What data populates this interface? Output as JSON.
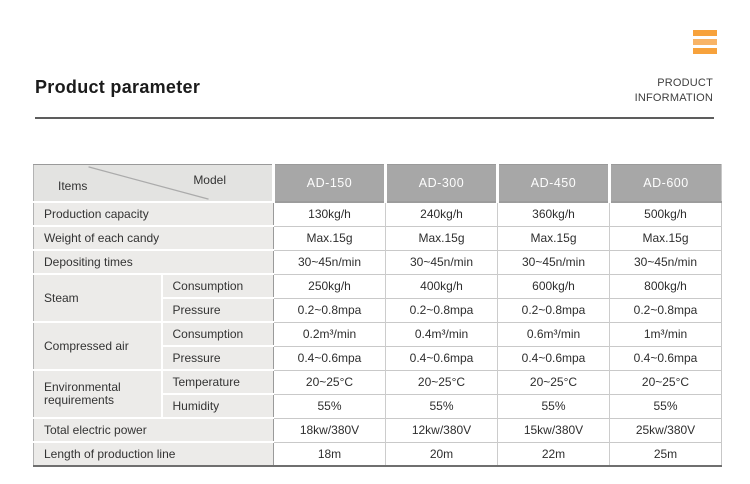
{
  "colors": {
    "accent_orange": "#F7A23C",
    "table_header_bg": "#A7A7A7"
  },
  "topbar": {
    "menu_icon": "hamburger-menu-icon"
  },
  "page": {
    "title": "Product parameter",
    "info_line1": "PRODUCT",
    "info_line2": "INFORMATION"
  },
  "table": {
    "corner": {
      "items_label": "Items",
      "model_label": "Model"
    },
    "models": [
      "AD-150",
      "AD-300",
      "AD-450",
      "AD-600"
    ],
    "rows": [
      {
        "label": "Production capacity",
        "values": [
          "130kg/h",
          "240kg/h",
          "360kg/h",
          "500kg/h"
        ]
      },
      {
        "label": "Weight of each candy",
        "values": [
          "Max.15g",
          "Max.15g",
          "Max.15g",
          "Max.15g"
        ]
      },
      {
        "label": "Depositing times",
        "values": [
          "30~45n/min",
          "30~45n/min",
          "30~45n/min",
          "30~45n/min"
        ]
      },
      {
        "label": "Steam",
        "rowspan": 2,
        "sub": "Consumption",
        "values": [
          "250kg/h",
          "400kg/h",
          "600kg/h",
          "800kg/h"
        ]
      },
      {
        "sub": "Pressure",
        "values": [
          "0.2~0.8mpa",
          "0.2~0.8mpa",
          "0.2~0.8mpa",
          "0.2~0.8mpa"
        ]
      },
      {
        "label": "Compressed air",
        "rowspan": 2,
        "sub": "Consumption",
        "values": [
          "0.2m³/min",
          "0.4m³/min",
          "0.6m³/min",
          "1m³/min"
        ]
      },
      {
        "sub": "Pressure",
        "values": [
          "0.4~0.6mpa",
          "0.4~0.6mpa",
          "0.4~0.6mpa",
          "0.4~0.6mpa"
        ]
      },
      {
        "label": "Environmental requirements",
        "rowspan": 2,
        "sub": "Temperature",
        "values": [
          "20~25°C",
          "20~25°C",
          "20~25°C",
          "20~25°C"
        ]
      },
      {
        "sub": "Humidity",
        "values": [
          "55%",
          "55%",
          "55%",
          "55%"
        ]
      },
      {
        "label": "Total electric power",
        "values": [
          "18kw/380V",
          "12kw/380V",
          "15kw/380V",
          "25kw/380V"
        ]
      },
      {
        "label": "Length of production line",
        "values": [
          "18m",
          "20m",
          "22m",
          "25m"
        ]
      }
    ]
  }
}
